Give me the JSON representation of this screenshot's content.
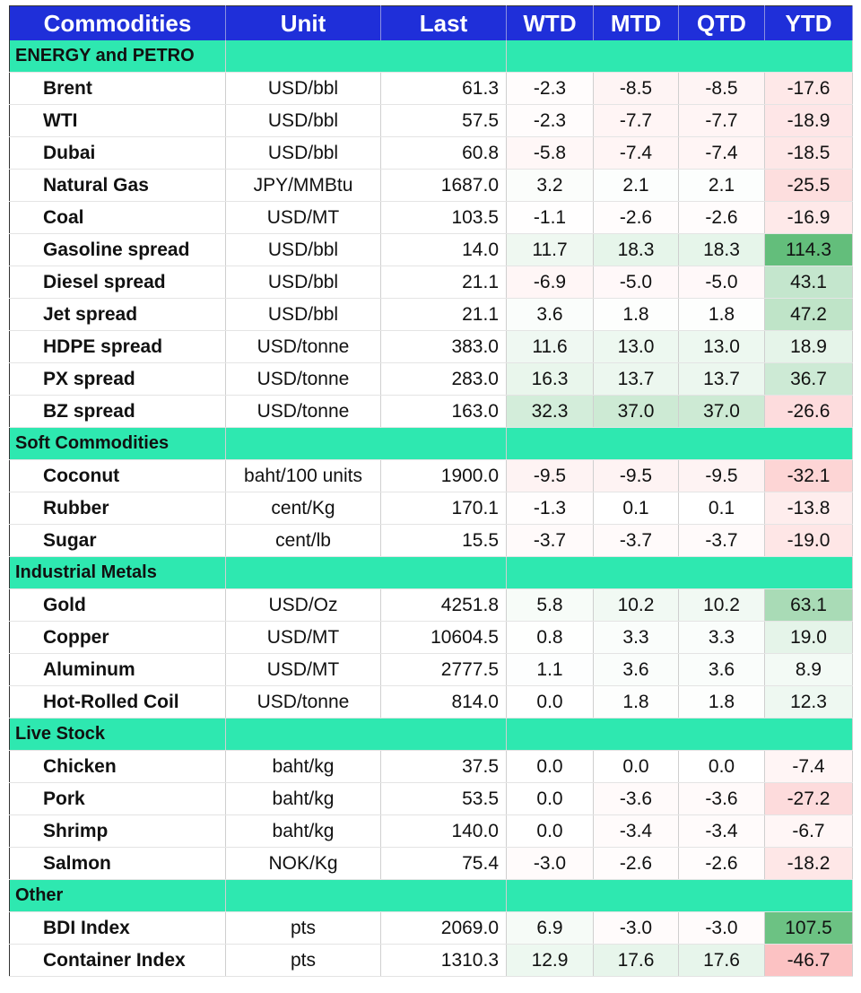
{
  "chart_data": {
    "type": "table",
    "columns": [
      "Commodities",
      "Unit",
      "Last",
      "WTD",
      "MTD",
      "QTD",
      "YTD"
    ],
    "sections": [
      {
        "name": "ENERGY and PETRO",
        "rows": [
          {
            "name": "Brent",
            "unit": "USD/bbl",
            "last": "61.3",
            "wtd": "-2.3",
            "mtd": "-8.5",
            "qtd": "-8.5",
            "ytd": "-17.6"
          },
          {
            "name": "WTI",
            "unit": "USD/bbl",
            "last": "57.5",
            "wtd": "-2.3",
            "mtd": "-7.7",
            "qtd": "-7.7",
            "ytd": "-18.9"
          },
          {
            "name": "Dubai",
            "unit": "USD/bbl",
            "last": "60.8",
            "wtd": "-5.8",
            "mtd": "-7.4",
            "qtd": "-7.4",
            "ytd": "-18.5"
          },
          {
            "name": "Natural Gas",
            "unit": "JPY/MMBtu",
            "last": "1687.0",
            "wtd": "3.2",
            "mtd": "2.1",
            "qtd": "2.1",
            "ytd": "-25.5"
          },
          {
            "name": "Coal",
            "unit": "USD/MT",
            "last": "103.5",
            "wtd": "-1.1",
            "mtd": "-2.6",
            "qtd": "-2.6",
            "ytd": "-16.9"
          },
          {
            "name": "Gasoline spread",
            "unit": "USD/bbl",
            "last": "14.0",
            "wtd": "11.7",
            "mtd": "18.3",
            "qtd": "18.3",
            "ytd": "114.3"
          },
          {
            "name": "Diesel spread",
            "unit": "USD/bbl",
            "last": "21.1",
            "wtd": "-6.9",
            "mtd": "-5.0",
            "qtd": "-5.0",
            "ytd": "43.1"
          },
          {
            "name": "Jet spread",
            "unit": "USD/bbl",
            "last": "21.1",
            "wtd": "3.6",
            "mtd": "1.8",
            "qtd": "1.8",
            "ytd": "47.2"
          },
          {
            "name": "HDPE spread",
            "unit": "USD/tonne",
            "last": "383.0",
            "wtd": "11.6",
            "mtd": "13.0",
            "qtd": "13.0",
            "ytd": "18.9"
          },
          {
            "name": "PX spread",
            "unit": "USD/tonne",
            "last": "283.0",
            "wtd": "16.3",
            "mtd": "13.7",
            "qtd": "13.7",
            "ytd": "36.7"
          },
          {
            "name": "BZ spread",
            "unit": "USD/tonne",
            "last": "163.0",
            "wtd": "32.3",
            "mtd": "37.0",
            "qtd": "37.0",
            "ytd": "-26.6"
          }
        ]
      },
      {
        "name": "Soft Commodities",
        "rows": [
          {
            "name": "Coconut",
            "unit": "baht/100 units",
            "last": "1900.0",
            "wtd": "-9.5",
            "mtd": "-9.5",
            "qtd": "-9.5",
            "ytd": "-32.1"
          },
          {
            "name": "Rubber",
            "unit": "cent/Kg",
            "last": "170.1",
            "wtd": "-1.3",
            "mtd": "0.1",
            "qtd": "0.1",
            "ytd": "-13.8"
          },
          {
            "name": "Sugar",
            "unit": "cent/lb",
            "last": "15.5",
            "wtd": "-3.7",
            "mtd": "-3.7",
            "qtd": "-3.7",
            "ytd": "-19.0"
          }
        ]
      },
      {
        "name": "Industrial Metals",
        "rows": [
          {
            "name": "Gold",
            "unit": "USD/Oz",
            "last": "4251.8",
            "wtd": "5.8",
            "mtd": "10.2",
            "qtd": "10.2",
            "ytd": "63.1"
          },
          {
            "name": "Copper",
            "unit": "USD/MT",
            "last": "10604.5",
            "wtd": "0.8",
            "mtd": "3.3",
            "qtd": "3.3",
            "ytd": "19.0"
          },
          {
            "name": "Aluminum",
            "unit": "USD/MT",
            "last": "2777.5",
            "wtd": "1.1",
            "mtd": "3.6",
            "qtd": "3.6",
            "ytd": "8.9"
          },
          {
            "name": "Hot-Rolled Coil",
            "unit": "USD/tonne",
            "last": "814.0",
            "wtd": "0.0",
            "mtd": "1.8",
            "qtd": "1.8",
            "ytd": "12.3"
          }
        ]
      },
      {
        "name": "Live Stock",
        "rows": [
          {
            "name": "Chicken",
            "unit": "baht/kg",
            "last": "37.5",
            "wtd": "0.0",
            "mtd": "0.0",
            "qtd": "0.0",
            "ytd": "-7.4"
          },
          {
            "name": "Pork",
            "unit": "baht/kg",
            "last": "53.5",
            "wtd": "0.0",
            "mtd": "-3.6",
            "qtd": "-3.6",
            "ytd": "-27.2"
          },
          {
            "name": "Shrimp",
            "unit": "baht/kg",
            "last": "140.0",
            "wtd": "0.0",
            "mtd": "-3.4",
            "qtd": "-3.4",
            "ytd": "-6.7"
          },
          {
            "name": "Salmon",
            "unit": "NOK/Kg",
            "last": "75.4",
            "wtd": "-3.0",
            "mtd": "-2.6",
            "qtd": "-2.6",
            "ytd": "-18.2"
          }
        ]
      },
      {
        "name": "Other",
        "rows": [
          {
            "name": "BDI Index",
            "unit": "pts",
            "last": "2069.0",
            "wtd": "6.9",
            "mtd": "-3.0",
            "qtd": "-3.0",
            "ytd": "107.5"
          },
          {
            "name": "Container Index",
            "unit": "pts",
            "last": "1310.3",
            "wtd": "12.9",
            "mtd": "17.6",
            "qtd": "17.6",
            "ytd": "-46.7"
          }
        ]
      }
    ],
    "colors": {
      "header_bg": "#1f2fd9",
      "header_text": "#ffffff",
      "section_bg": "#2ee8b0",
      "positive": "#63be7b",
      "negative": "#f8696b",
      "neutral": "#ffffff"
    }
  }
}
